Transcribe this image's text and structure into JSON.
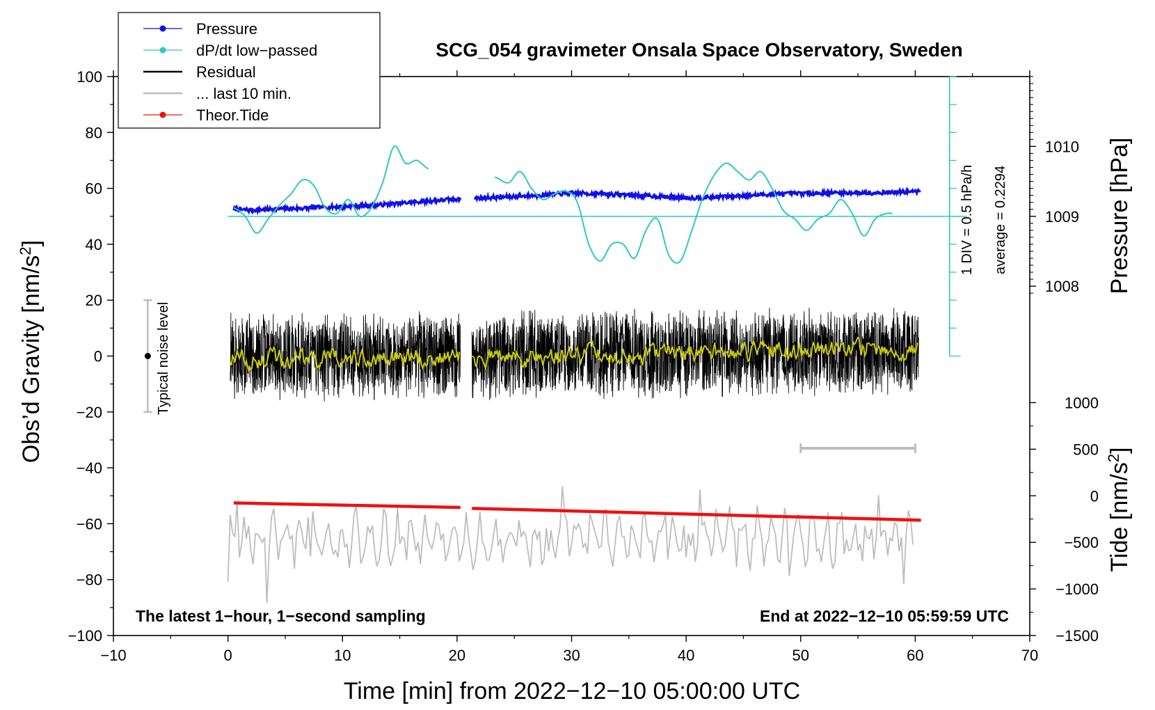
{
  "chart_data": {
    "type": "line",
    "title": "SCG_054 gravimeter Onsala Space Observatory, Sweden",
    "xlabel": "Time [min] from 2022−12−10 05:00:00 UTC",
    "xlim": [
      -10,
      70
    ],
    "x_ticks": [
      -10,
      0,
      10,
      20,
      30,
      40,
      50,
      60,
      70
    ],
    "x_tick_labels": [
      "−10",
      "0",
      "10",
      "20",
      "30",
      "40",
      "50",
      "60",
      "70"
    ],
    "left_axis": {
      "label_main": "Obs’d Gravity [nm/s",
      "label_sup": "2",
      "label_end": "]",
      "ylim": [
        -100,
        100
      ],
      "ticks": [
        -100,
        -80,
        -60,
        -40,
        -20,
        0,
        20,
        40,
        60,
        80,
        100
      ],
      "tick_labels": [
        "−100",
        "−80",
        "−60",
        "−40",
        "−20",
        "0",
        "20",
        "40",
        "60",
        "80",
        "100"
      ]
    },
    "pressure_axis": {
      "label": "Pressure [hPa]",
      "values": [
        1008,
        1009,
        1010
      ],
      "tick_labels": [
        "1008",
        "1009",
        "1010"
      ],
      "gravity_equiv": [
        25,
        50,
        75
      ]
    },
    "tide_axis": {
      "label_main": "Tide [nm/s",
      "label_sup": "2",
      "label_end": "]",
      "values": [
        -1500,
        -1000,
        -500,
        0,
        500,
        1000
      ],
      "tick_labels": [
        "−1500",
        "−1000",
        "−500",
        "0",
        "500",
        "1000"
      ],
      "gravity_equiv": [
        -100,
        -83.333,
        -66.667,
        -50,
        -33.333,
        -16.667
      ]
    },
    "legend": [
      {
        "label": "Pressure",
        "color": "#1010e6",
        "style": "line-dot"
      },
      {
        "label": "dP/dt low−passed",
        "color": "#2ec8c0",
        "style": "line-dot"
      },
      {
        "label": "Residual",
        "color": "#000000",
        "style": "line"
      },
      {
        "label": "... last 10 min.",
        "color": "#bdbdbd",
        "style": "line"
      },
      {
        "label": "Theor.Tide",
        "color": "#ee1111",
        "style": "line-dot"
      }
    ],
    "dpdt_annotation": {
      "div_label": "1 DIV = 0.5 hPa/h",
      "average_label": "average = 0.2294",
      "x": 63,
      "y_range": [
        0,
        100
      ],
      "baseline": 50
    },
    "noise_indicator": {
      "label": "Typical noise level",
      "x": -7,
      "y_range": [
        -20,
        20
      ],
      "y_center": 0
    },
    "scale_bar": {
      "x_range": [
        50,
        60
      ],
      "y": -33
    },
    "footer_left": "The latest 1−hour, 1−second sampling",
    "footer_right": "End at 2022−12−10 05:59:59 UTC",
    "series": [
      {
        "name": "Pressure",
        "color": "#1010e6",
        "segments": [
          {
            "x": [
              0.5,
              2,
              4,
              6,
              8,
              10,
              12,
              14,
              16,
              18,
              20.3
            ],
            "y": [
              52.5,
              52.2,
              52.6,
              52.8,
              53.2,
              53.5,
              53.8,
              54.3,
              55.0,
              55.6,
              56.3
            ]
          },
          {
            "x": [
              21.5,
              24,
              27,
              30,
              33,
              36,
              39,
              41,
              44,
              47,
              50,
              53,
              56,
              59,
              60.5
            ],
            "y": [
              56.5,
              56.9,
              57.5,
              58.3,
              58.0,
              57.5,
              56.8,
              56.6,
              57.2,
              57.8,
              58.2,
              58.4,
              58.4,
              58.7,
              58.9
            ]
          }
        ]
      },
      {
        "name": "dP/dt low-passed",
        "color": "#2ec8c0",
        "segments": [
          {
            "x": [
              0.5,
              1.5,
              2.5,
              3.5,
              4.5,
              5.5,
              6.5,
              7.5,
              8.5,
              9.5,
              10.5,
              11.5,
              12.5,
              13.5,
              14.5,
              15.5,
              16.5,
              17.5
            ],
            "y": [
              53,
              50,
              44,
              49,
              54,
              58,
              63,
              61,
              53,
              51,
              56,
              50,
              53,
              62,
              75,
              69,
              70,
              67
            ]
          },
          {
            "x": [
              23.3,
              24.5,
              25.5,
              26.5,
              27.5,
              28.5,
              29.5,
              30.5,
              31.5,
              32.5,
              33.5,
              34.5,
              35.5,
              36.5,
              37.5,
              38.5,
              39.5,
              40.5,
              41.5,
              42.5,
              43.5,
              44.5,
              45.5,
              46.5,
              47.5,
              48.5,
              49.5,
              50.5,
              51.5,
              52.5,
              53.5,
              54.5,
              55.5,
              56.5,
              57.5,
              58
            ],
            "y": [
              64,
              62,
              66,
              60,
              56,
              58,
              59,
              55,
              40,
              34,
              40,
              40,
              35,
              45,
              49,
              36,
              34,
              45,
              57,
              65,
              69,
              66,
              63,
              66,
              60,
              52,
              49,
              45,
              49,
              51,
              56,
              51,
              43,
              49,
              51,
              51
            ]
          }
        ]
      },
      {
        "name": "Residual",
        "color": "#000000",
        "segments": [
          {
            "x": [
              0.2,
              20.3
            ],
            "y": [
              0,
              0
            ]
          },
          {
            "x": [
              21.3,
              60.3
            ],
            "y": [
              0,
              2
            ]
          }
        ]
      },
      {
        "name": "Residual smoothed",
        "color": "#c9c910",
        "segments": [
          {
            "x": [
              0.2,
              20.3
            ],
            "y": [
              -1,
              -0.5
            ]
          },
          {
            "x": [
              21.3,
              60.3
            ],
            "y": [
              -1,
              3
            ]
          }
        ]
      },
      {
        "name": "... last 10 min.",
        "color": "#bdbdbd",
        "segments": [
          {
            "x": [
              0,
              60
            ],
            "y": [
              -65,
              -65
            ]
          }
        ]
      },
      {
        "name": "Theor.Tide",
        "color": "#ee1111",
        "tide_units": true,
        "segments": [
          {
            "x": [
              0.5,
              20.3
            ],
            "y": [
              -77,
              -125
            ]
          },
          {
            "x": [
              21.3,
              60.5
            ],
            "y": [
              -135,
              -262
            ]
          }
        ]
      }
    ]
  }
}
